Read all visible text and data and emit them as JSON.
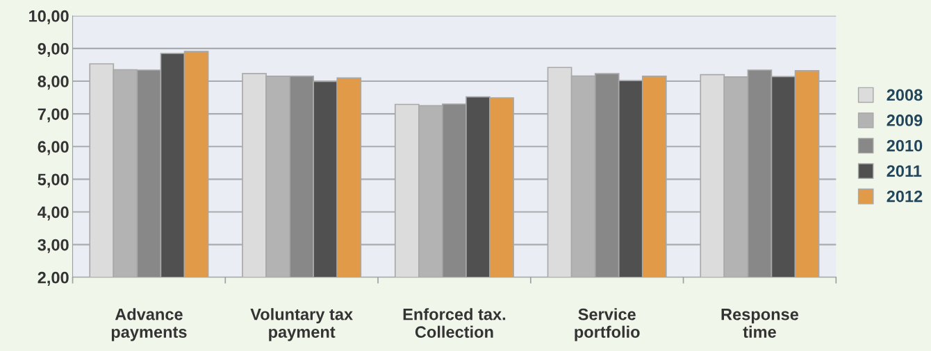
{
  "chart_data": {
    "type": "bar",
    "categories": [
      "Advance\npayments",
      "Voluntary tax\npayment",
      "Enforced tax.\nCollection",
      "Service\nportfolio",
      "Response\ntime"
    ],
    "series": [
      {
        "name": "2008",
        "color": "#dcdcdc",
        "values": [
          8.53,
          8.23,
          7.29,
          8.42,
          8.2
        ]
      },
      {
        "name": "2009",
        "color": "#b3b3b3",
        "values": [
          8.35,
          8.15,
          7.25,
          8.16,
          8.13
        ]
      },
      {
        "name": "2010",
        "color": "#888888",
        "values": [
          8.34,
          8.15,
          7.3,
          8.23,
          8.34
        ]
      },
      {
        "name": "2011",
        "color": "#505050",
        "values": [
          8.85,
          7.99,
          7.52,
          8.02,
          8.14
        ]
      },
      {
        "name": "2012",
        "color": "#e09a48",
        "values": [
          8.91,
          8.1,
          7.49,
          8.15,
          8.32
        ]
      }
    ],
    "ylim": [
      2,
      10
    ],
    "yticks": [
      {
        "value": 2,
        "label": "2,00"
      },
      {
        "value": 3,
        "label": "3,00"
      },
      {
        "value": 4,
        "label": "4,00"
      },
      {
        "value": 5,
        "label": "5,00"
      },
      {
        "value": 6,
        "label": "6,00"
      },
      {
        "value": 7,
        "label": "7,00"
      },
      {
        "value": 8,
        "label": "8,00"
      },
      {
        "value": 9,
        "label": "9,00"
      },
      {
        "value": 10,
        "label": "10,00"
      }
    ],
    "grid": "y",
    "legend": "right"
  }
}
